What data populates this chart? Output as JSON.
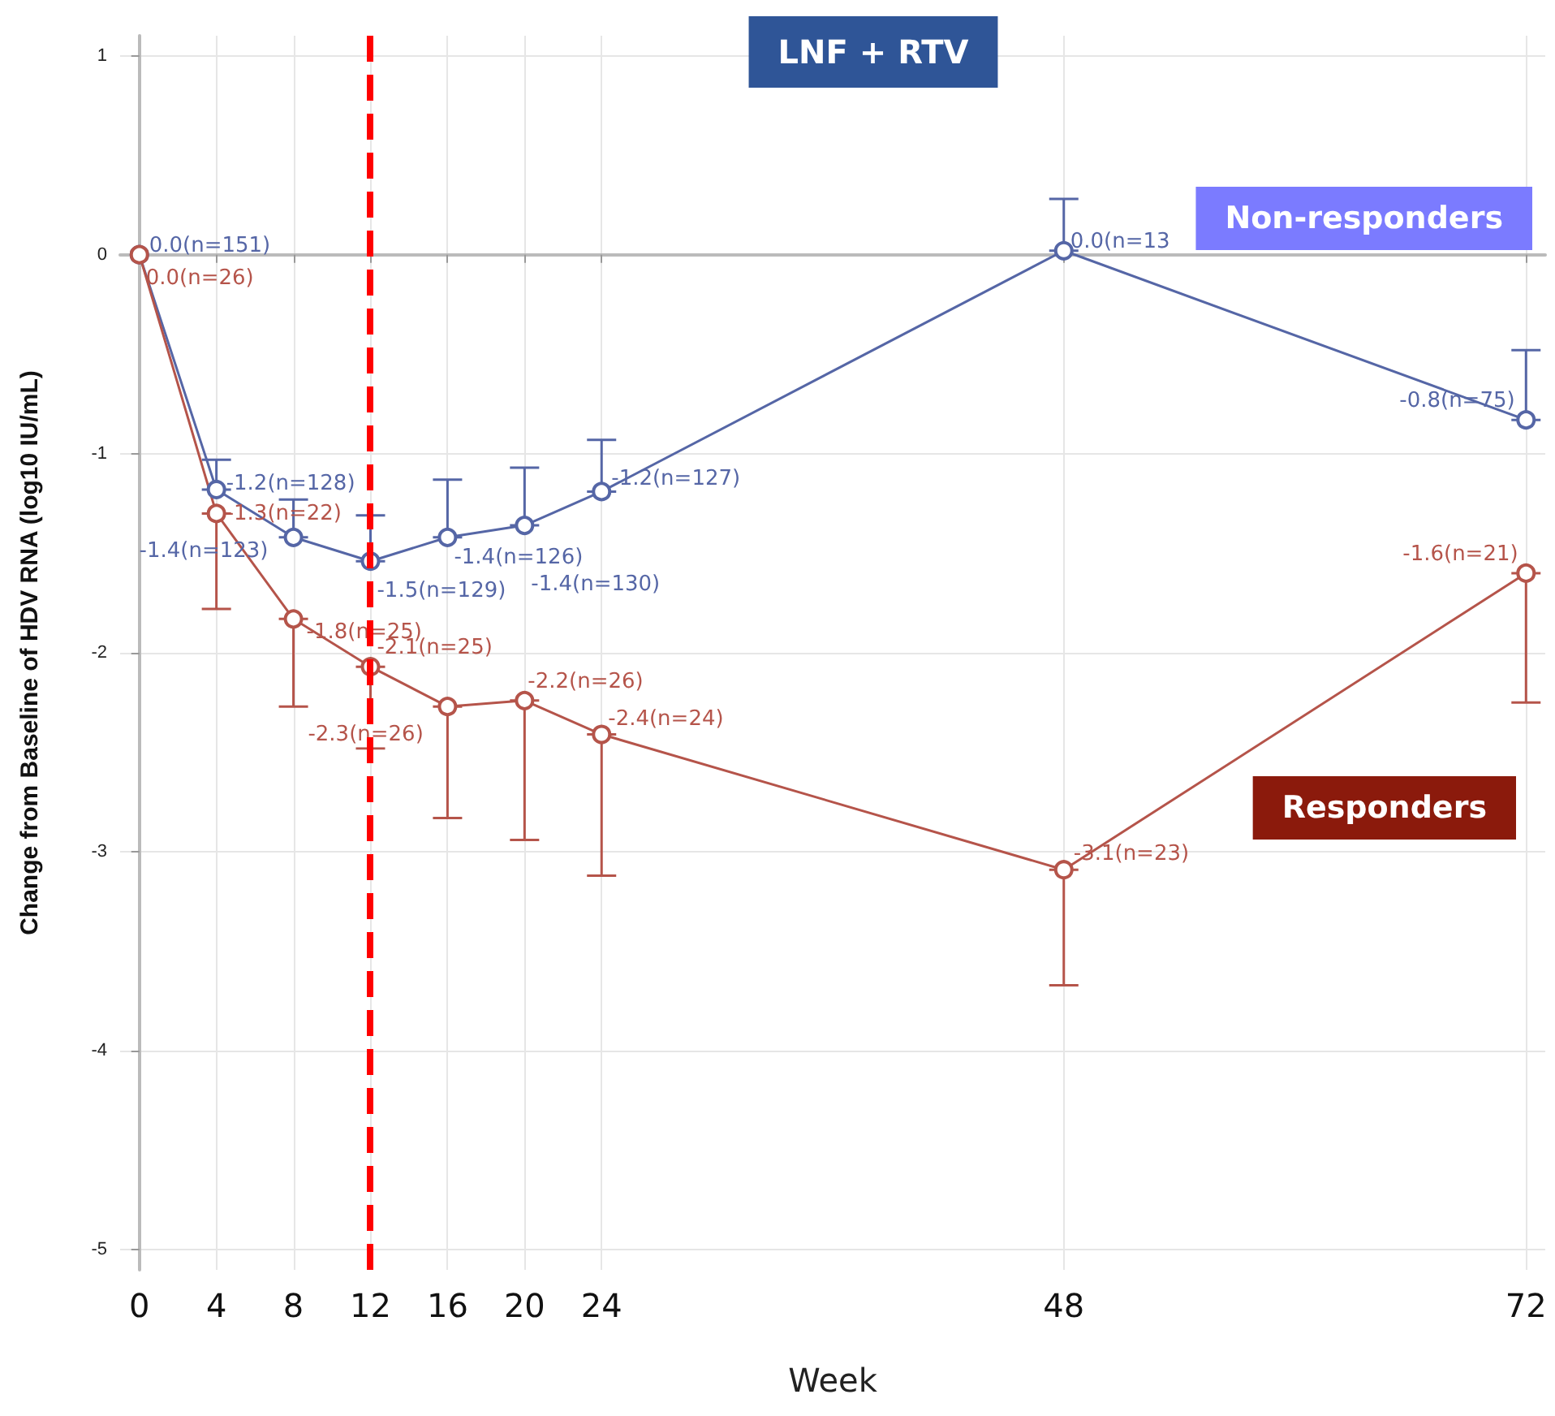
{
  "chart_data": {
    "type": "line",
    "title": "LNF + RTV",
    "xlabel": "Week",
    "ylabel": "Change from Baseline of HDV RNA (log10 IU/mL)",
    "x": [
      0,
      4,
      8,
      12,
      16,
      20,
      24,
      48,
      72
    ],
    "series": [
      {
        "name": "Non-responders",
        "color": "#5566a6",
        "values": [
          0,
          -1.18,
          -1.42,
          -1.54,
          -1.42,
          -1.36,
          -1.19,
          0.02,
          -0.83
        ],
        "errors": [
          null,
          [
            -1.18,
            -1.03
          ],
          [
            -1.42,
            -1.23
          ],
          [
            -1.54,
            -1.31
          ],
          [
            -1.42,
            -1.13
          ],
          [
            -1.36,
            -1.07
          ],
          [
            -1.19,
            -0.93
          ],
          [
            0.02,
            0.28
          ],
          [
            -0.83,
            -0.48
          ]
        ],
        "value_labels": [
          "0.0(n=151)",
          "-1.2(n=128)",
          "-1.4(n=123)",
          "-1.5(n=129)",
          "-1.4(n=126)",
          "-1.4(n=130)",
          "-1.2(n=127)",
          "0.0(n=13",
          "-0.8(n=75)"
        ]
      },
      {
        "name": "Responders",
        "color": "#b5544a",
        "values": [
          0,
          -1.3,
          -1.83,
          -2.07,
          -2.27,
          -2.24,
          -2.41,
          -3.09,
          -1.6
        ],
        "errors": [
          null,
          [
            -1.78,
            -1.3
          ],
          [
            -2.27,
            -1.83
          ],
          [
            -2.48,
            -2.07
          ],
          [
            -2.83,
            -2.27
          ],
          [
            -2.94,
            -2.24
          ],
          [
            -3.12,
            -2.41
          ],
          [
            -3.67,
            -3.09
          ],
          [
            -2.25,
            -1.6
          ]
        ],
        "value_labels": [
          "0.0(n=26)",
          "-1.3(n=22)",
          "-1.8(n=25)",
          "-2.1(n=25)",
          "-2.3(n=26)",
          "-2.2(n=26)",
          "-2.4(n=24)",
          "-3.1(n=23)",
          "-1.6(n=21)"
        ]
      }
    ],
    "xlim": [
      -1,
      73
    ],
    "xticks": [
      0,
      4,
      8,
      12,
      16,
      20,
      24,
      48,
      72
    ],
    "ylim": [
      -5.1,
      1.1
    ],
    "yticks": [
      -5,
      -4,
      -3,
      -2,
      -1,
      0,
      1
    ],
    "ref_lines": [
      {
        "axis": "x",
        "value": 12,
        "color": "#ff0000",
        "line_style": "dashed"
      }
    ],
    "grid": true,
    "legend": false,
    "marker": "circle",
    "line_style": "solid"
  }
}
